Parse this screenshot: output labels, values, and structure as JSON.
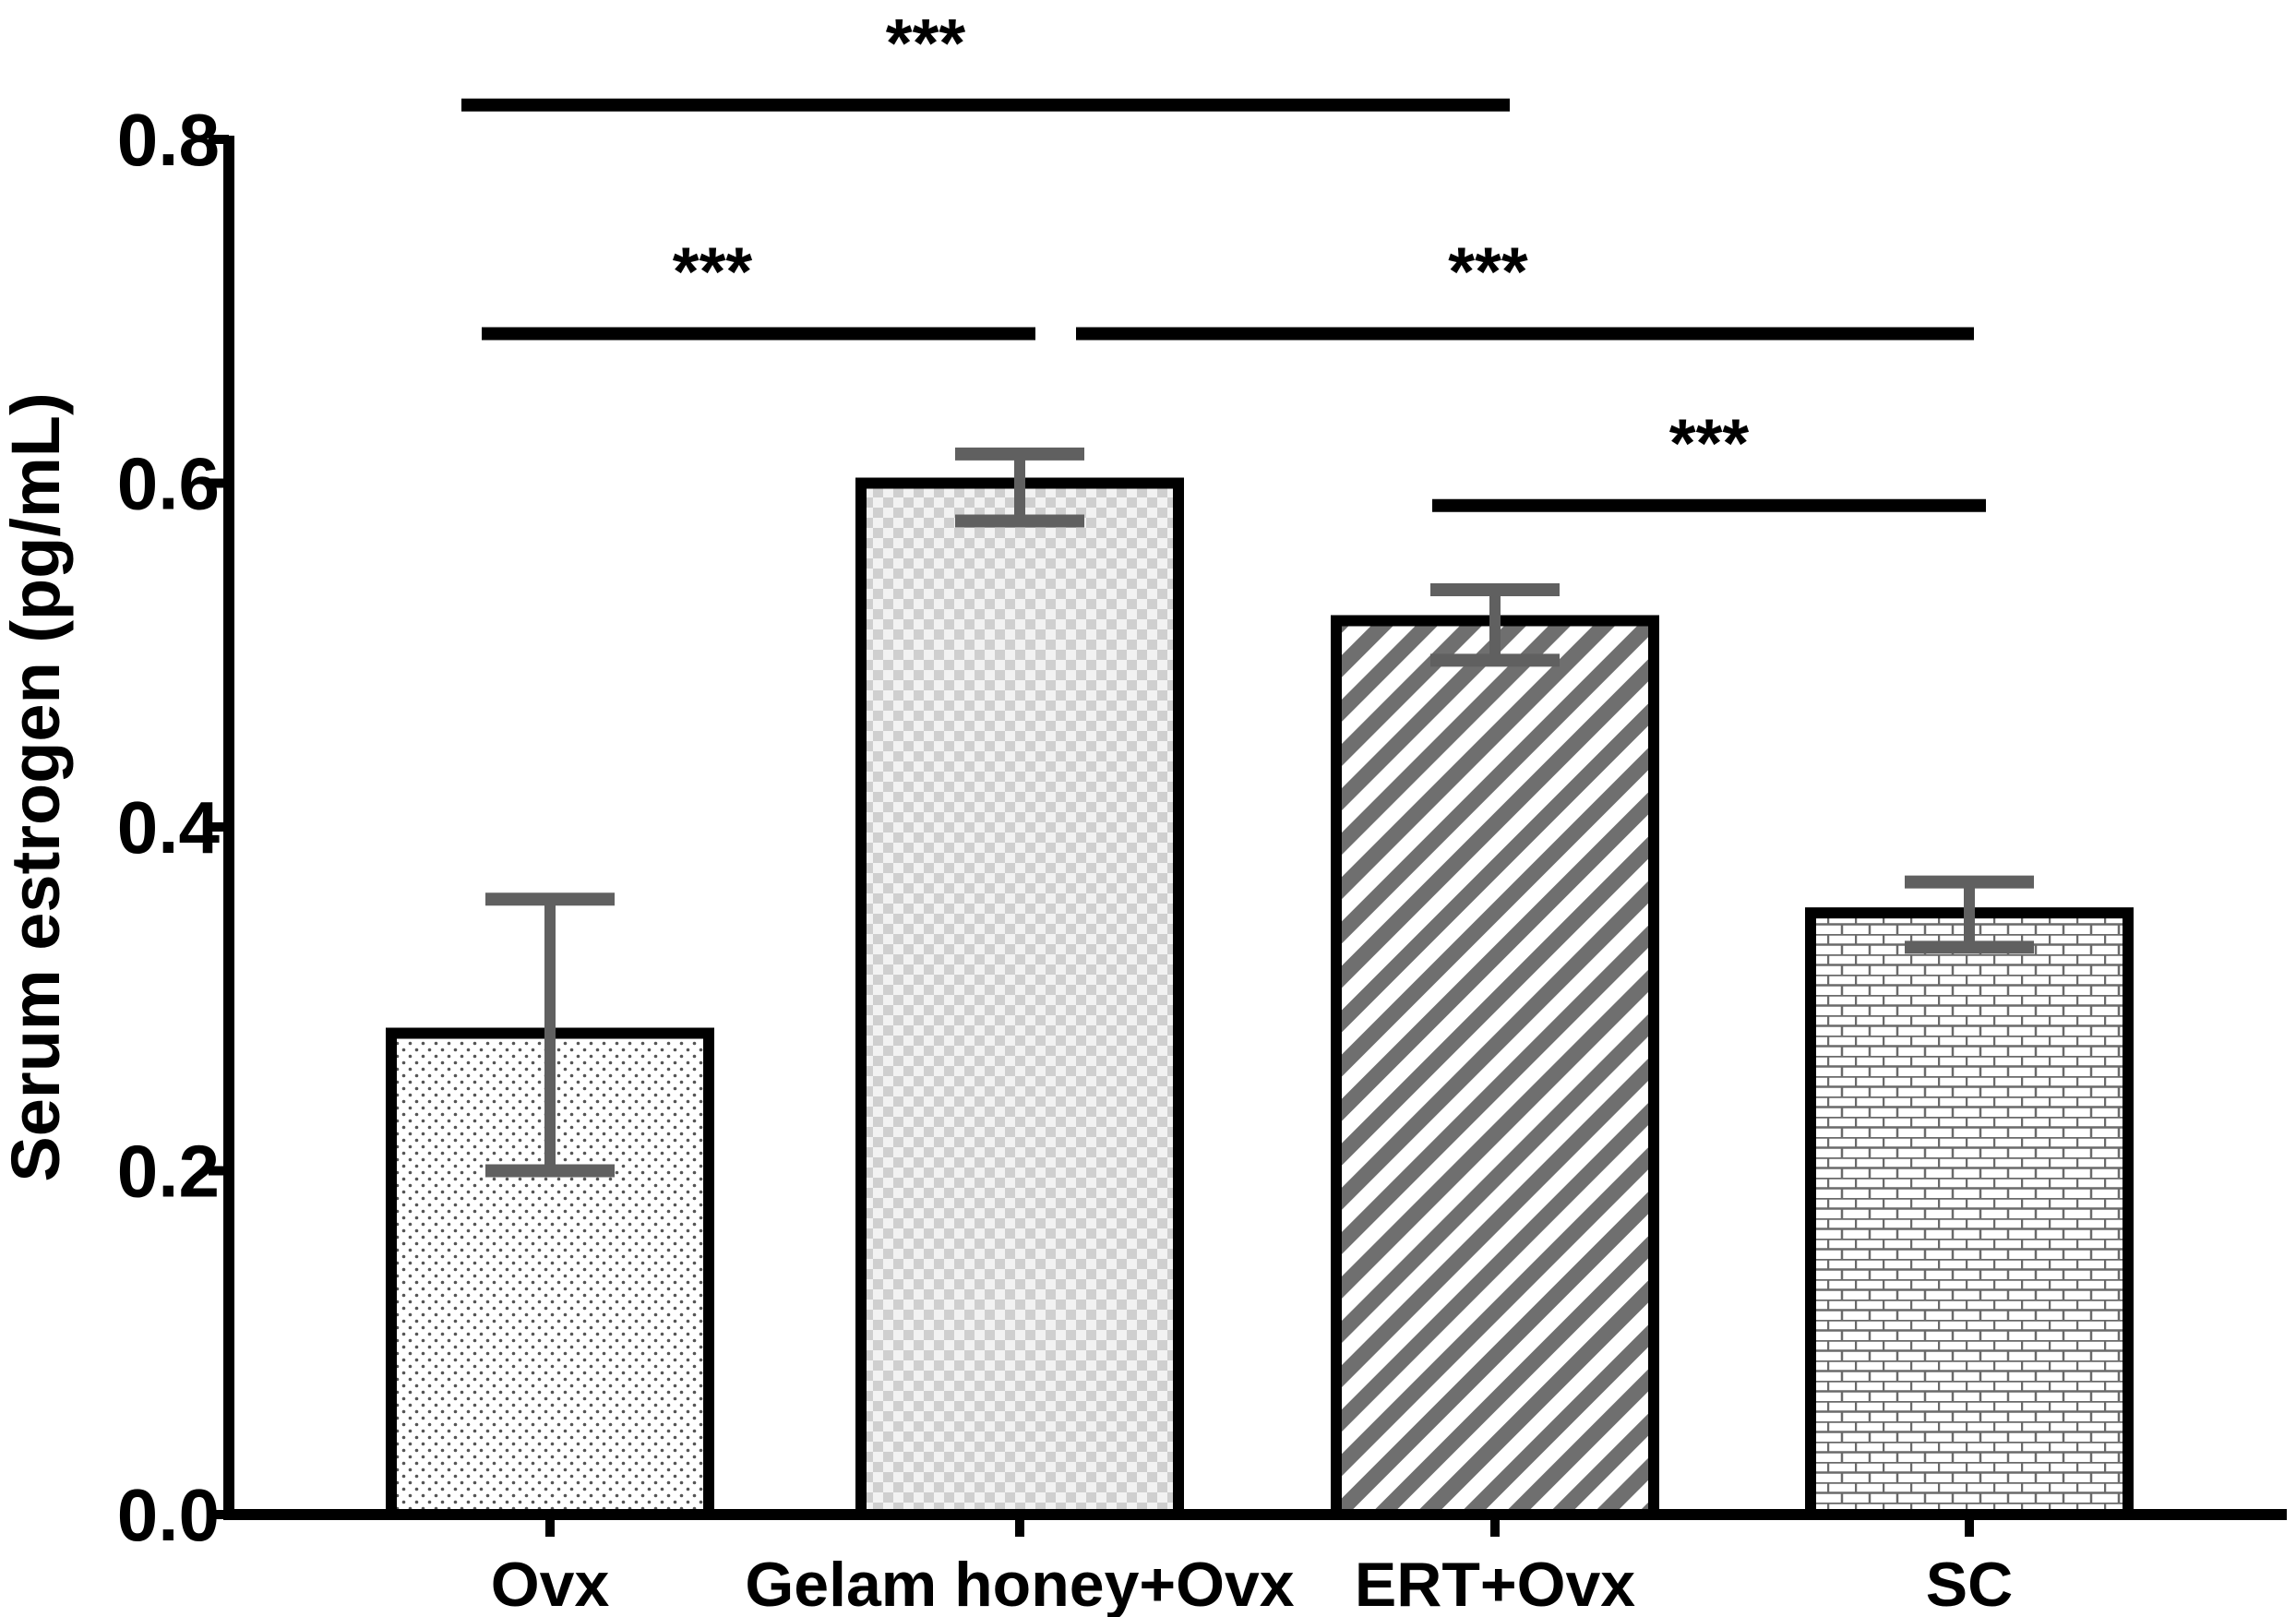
{
  "chart_data": {
    "type": "bar",
    "title": "",
    "xlabel": "",
    "ylabel": "Serum estrogen (pg/mL)",
    "ylim": [
      0,
      0.8
    ],
    "yticks": [
      0.0,
      0.2,
      0.4,
      0.6,
      0.8
    ],
    "ytick_labels": [
      "0.0",
      "0.2",
      "0.4",
      "0.6",
      "0.8"
    ],
    "categories": [
      "Ovx",
      "Gelam honey+Ovx",
      "ERT+Ovx",
      "SC"
    ],
    "values": [
      0.28,
      0.6,
      0.52,
      0.35
    ],
    "error_low": [
      0.2,
      0.578,
      0.497,
      0.33
    ],
    "error_high": [
      0.358,
      0.617,
      0.538,
      0.368
    ],
    "patterns": [
      "dots",
      "checker",
      "diagonal-stripes",
      "bricks"
    ],
    "error_color": "#606060",
    "significance": [
      {
        "from": 0,
        "to": 2,
        "y": 0.82,
        "label": "***"
      },
      {
        "from": 0,
        "to": 1,
        "y": 0.687,
        "label": "***"
      },
      {
        "from": 1,
        "to": 3,
        "y": 0.687,
        "label": "***"
      },
      {
        "from": 2,
        "to": 3,
        "y": 0.587,
        "label": "***"
      }
    ],
    "grid": false,
    "legend": "none"
  }
}
